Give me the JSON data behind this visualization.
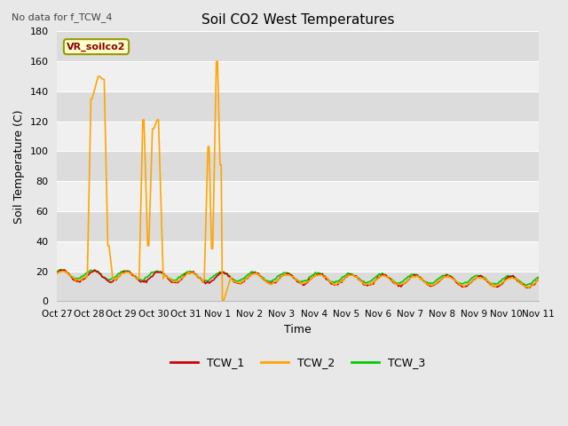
{
  "title": "Soil CO2 West Temperatures",
  "subtitle": "No data for f_TCW_4",
  "xlabel": "Time",
  "ylabel": "Soil Temperature (C)",
  "ylim": [
    0,
    180
  ],
  "yticks": [
    0,
    20,
    40,
    60,
    80,
    100,
    120,
    140,
    160,
    180
  ],
  "fig_bg_color": "#e8e8e8",
  "plot_bg_color": "#f0f0f0",
  "band_colors": [
    "#dcdcdc",
    "#f0f0f0"
  ],
  "legend_label": "VR_soilco2",
  "series": {
    "TCW_1": {
      "color": "#cc0000",
      "linewidth": 1.2
    },
    "TCW_2": {
      "color": "#ffa500",
      "linewidth": 1.2
    },
    "TCW_3": {
      "color": "#00cc00",
      "linewidth": 1.2
    }
  },
  "xtick_labels": [
    "Oct 27",
    "Oct 28",
    "Oct 29",
    "Oct 30",
    "Oct 31",
    "Nov 1",
    "Nov 2",
    "Nov 3",
    "Nov 4",
    "Nov 5",
    "Nov 6",
    "Nov 7",
    "Nov 8",
    "Nov 9",
    "Nov 10",
    "Nov 11"
  ],
  "days": 15,
  "figsize": [
    6.4,
    4.8
  ],
  "dpi": 100
}
